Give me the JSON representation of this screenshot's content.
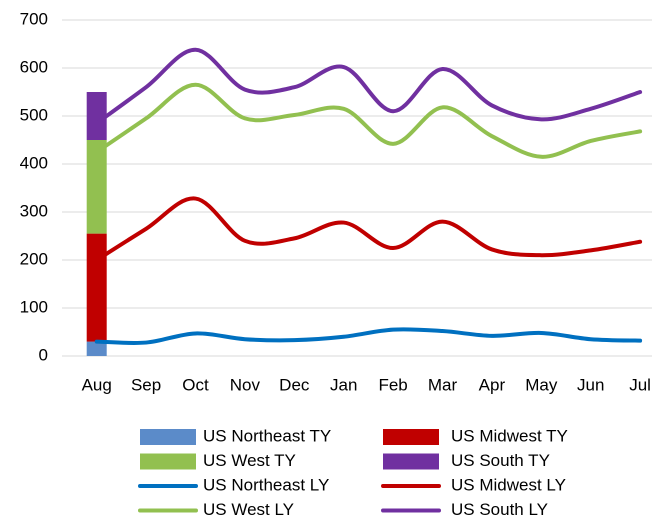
{
  "chart_data": {
    "type": "combo",
    "categories": [
      "Aug",
      "Sep",
      "Oct",
      "Nov",
      "Dec",
      "Jan",
      "Feb",
      "Mar",
      "Apr",
      "May",
      "Jun",
      "Jul"
    ],
    "series": [
      {
        "name": "US Northeast TY",
        "type": "bar",
        "color": "#5b8bc9",
        "values": [
          30,
          null,
          null,
          null,
          null,
          null,
          null,
          null,
          null,
          null,
          null,
          null
        ]
      },
      {
        "name": "US Midwest TY",
        "type": "bar",
        "color": "#c00000",
        "values": [
          225,
          null,
          null,
          null,
          null,
          null,
          null,
          null,
          null,
          null,
          null,
          null
        ]
      },
      {
        "name": "US West TY",
        "type": "bar",
        "color": "#92c050",
        "values": [
          195,
          null,
          null,
          null,
          null,
          null,
          null,
          null,
          null,
          null,
          null,
          null
        ]
      },
      {
        "name": "US South TY",
        "type": "bar",
        "color": "#7030a0",
        "values": [
          100,
          null,
          null,
          null,
          null,
          null,
          null,
          null,
          null,
          null,
          null,
          null
        ]
      },
      {
        "name": "US Northeast LY",
        "type": "line",
        "color": "#0070c0",
        "values": [
          30,
          28,
          47,
          35,
          33,
          40,
          55,
          52,
          42,
          48,
          35,
          32
        ]
      },
      {
        "name": "US Midwest LY",
        "type": "line",
        "color": "#c00000",
        "values": [
          200,
          265,
          328,
          240,
          245,
          278,
          225,
          280,
          222,
          210,
          220,
          238
        ]
      },
      {
        "name": "US West LY",
        "type": "line",
        "color": "#92c050",
        "values": [
          425,
          495,
          565,
          495,
          502,
          515,
          442,
          518,
          458,
          415,
          448,
          468
        ]
      },
      {
        "name": "US South LY",
        "type": "line",
        "color": "#7030a0",
        "values": [
          485,
          560,
          638,
          555,
          560,
          602,
          510,
          598,
          522,
          493,
          515,
          550
        ]
      }
    ],
    "ylim": [
      0,
      700
    ],
    "yticks": [
      0,
      100,
      200,
      300,
      400,
      500,
      600,
      700
    ],
    "grid": true,
    "legend": "bottom",
    "stacked_bars": true
  }
}
